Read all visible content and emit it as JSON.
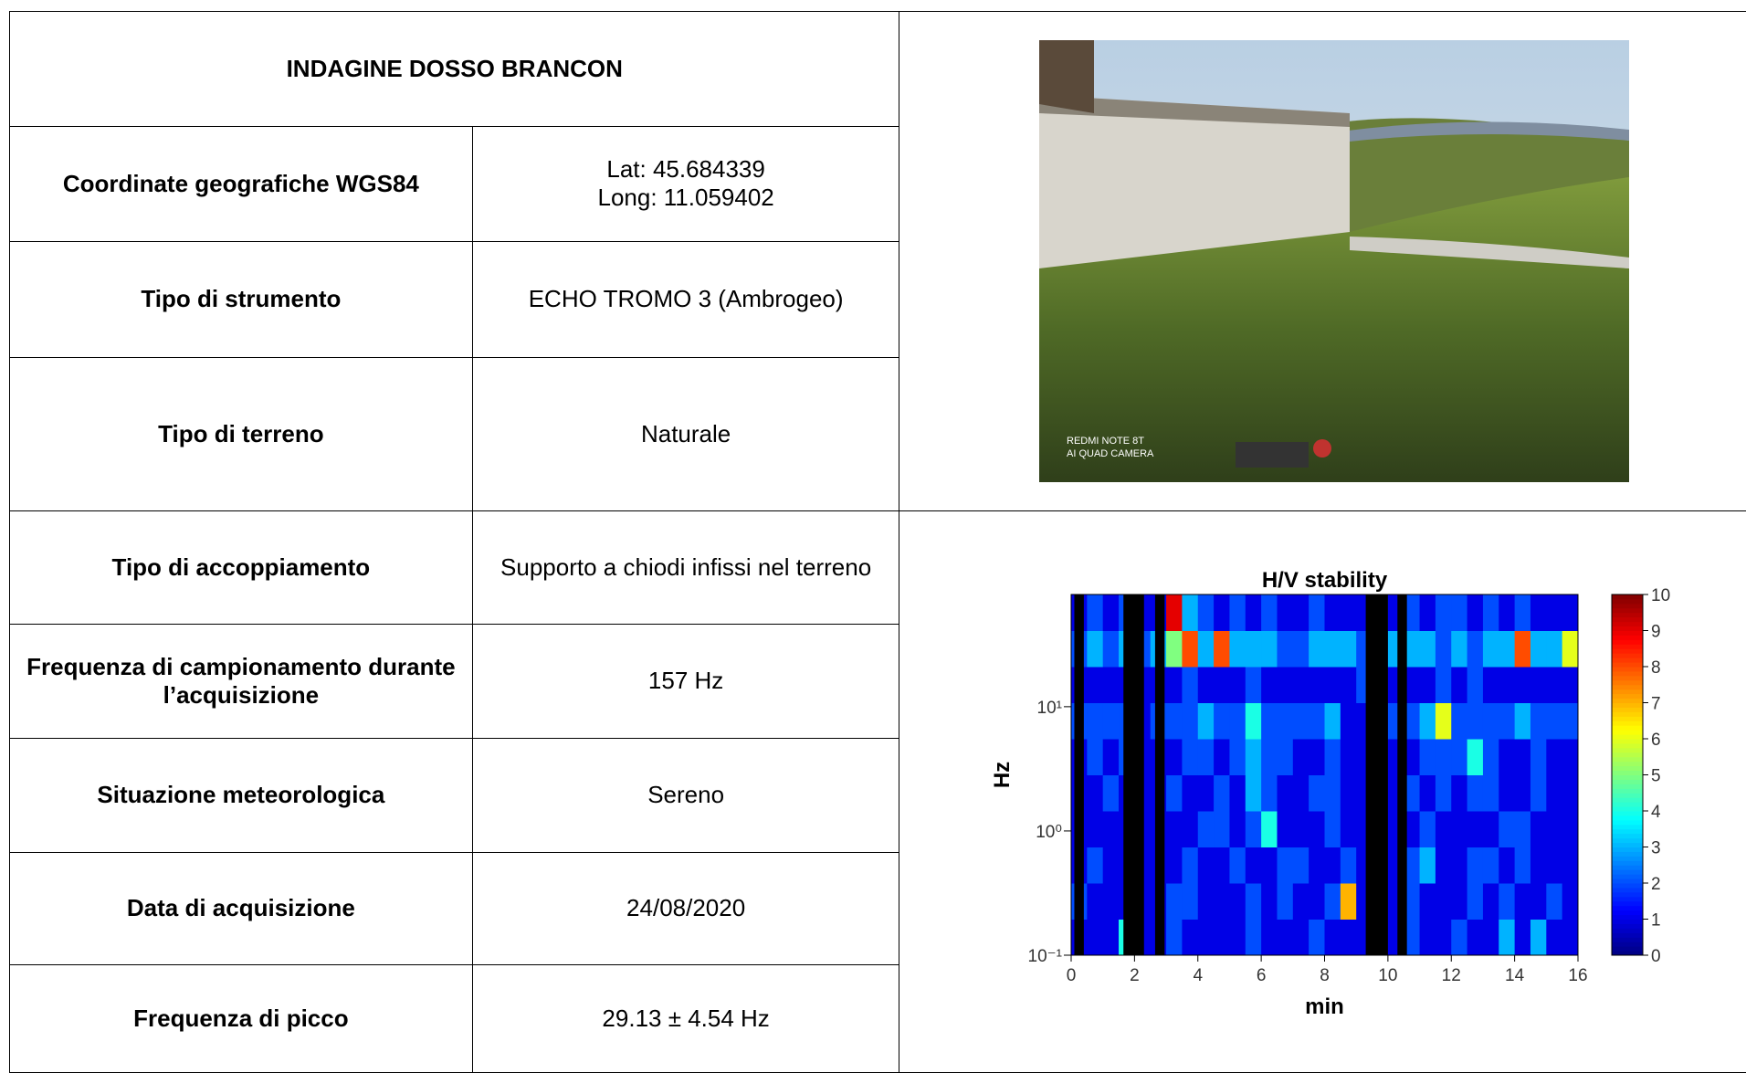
{
  "table": {
    "title": "INDAGINE DOSSO BRANCON",
    "rows": [
      [
        "Coordinate geografiche WGS84",
        "Lat: 45.684339\nLong: 11.059402"
      ],
      [
        "Tipo di strumento",
        "ECHO TROMO 3 (Ambrogeo)"
      ],
      [
        "Tipo di terreno",
        "Naturale"
      ],
      [
        "Tipo di accoppiamento",
        "Supporto a chiodi infissi nel terreno"
      ],
      [
        "Frequenza di campionamento durante l’acquisizione",
        "157 Hz"
      ],
      [
        "Situazione meteorologica",
        "Sereno"
      ],
      [
        "Data di acquisizione",
        "24/08/2020"
      ],
      [
        "Frequenza di picco",
        "29.13 ± 4.54 Hz"
      ]
    ]
  },
  "photo": {
    "watermark": [
      "REDMI NOTE 8T",
      "AI QUAD CAMERA"
    ]
  },
  "chart_data": {
    "type": "heatmap",
    "title": "H/V stability",
    "x_label": "min",
    "y_label": "Hz",
    "xlim": [
      0,
      16
    ],
    "xticks": [
      0,
      2,
      4,
      6,
      8,
      10,
      12,
      14,
      16
    ],
    "ylim": [
      0.1,
      80
    ],
    "y_scale": "log",
    "yticks": [
      {
        "value": 0.1,
        "label": "10⁻¹"
      },
      {
        "value": 1,
        "label": "10⁰"
      },
      {
        "value": 10,
        "label": "10¹"
      }
    ],
    "colormap": "jet",
    "zlim": [
      0,
      10
    ],
    "zticks": [
      0,
      1,
      2,
      3,
      4,
      5,
      6,
      7,
      8,
      9,
      10
    ],
    "excluded_color": "#000000",
    "excluded_windows": [
      [
        0.1,
        0.4
      ],
      [
        1.65,
        2.3
      ],
      [
        2.65,
        2.95
      ],
      [
        9.3,
        10.0
      ],
      [
        10.3,
        10.6
      ]
    ],
    "z": [
      [
        1,
        1,
        1,
        4,
        1,
        1,
        2,
        1,
        1,
        1,
        1,
        2,
        1,
        1,
        1,
        2,
        1,
        1,
        1,
        1,
        1,
        2,
        1,
        1,
        2,
        1,
        1,
        3,
        1,
        3,
        1,
        1
      ],
      [
        2,
        1,
        1,
        1,
        1,
        1,
        2,
        2,
        1,
        1,
        1,
        2,
        1,
        2,
        1,
        1,
        2,
        7,
        1,
        1,
        1,
        2,
        1,
        1,
        1,
        2,
        1,
        2,
        1,
        1,
        2,
        1
      ],
      [
        1,
        2,
        1,
        1,
        1,
        1,
        1,
        2,
        1,
        1,
        2,
        1,
        1,
        2,
        2,
        1,
        1,
        2,
        1,
        1,
        1,
        2,
        3,
        1,
        1,
        2,
        2,
        1,
        2,
        1,
        1,
        1
      ],
      [
        1,
        1,
        1,
        1,
        1,
        1,
        1,
        1,
        2,
        2,
        1,
        2,
        4,
        1,
        1,
        1,
        2,
        1,
        1,
        1,
        1,
        1,
        2,
        1,
        1,
        1,
        1,
        2,
        2,
        1,
        1,
        1
      ],
      [
        1,
        1,
        2,
        1,
        1,
        1,
        2,
        1,
        1,
        2,
        1,
        3,
        2,
        1,
        1,
        2,
        2,
        1,
        1,
        1,
        1,
        2,
        1,
        2,
        1,
        2,
        2,
        1,
        1,
        2,
        1,
        1
      ],
      [
        1,
        2,
        1,
        2,
        1,
        1,
        1,
        2,
        2,
        1,
        2,
        3,
        2,
        2,
        1,
        1,
        2,
        1,
        1,
        1,
        1,
        1,
        2,
        2,
        2,
        4,
        2,
        1,
        1,
        2,
        1,
        1
      ],
      [
        2,
        2,
        2,
        2,
        1,
        2,
        2,
        2,
        3,
        2,
        2,
        4,
        2,
        2,
        2,
        2,
        3,
        1,
        1,
        1,
        2,
        2,
        3,
        6,
        2,
        2,
        2,
        2,
        3,
        2,
        2,
        2
      ],
      [
        1,
        1,
        1,
        1,
        1,
        1,
        1,
        2,
        1,
        1,
        1,
        2,
        1,
        1,
        1,
        1,
        1,
        1,
        2,
        1,
        1,
        1,
        1,
        2,
        1,
        2,
        1,
        1,
        1,
        1,
        1,
        1
      ],
      [
        2,
        3,
        2,
        3,
        2,
        3,
        5,
        8,
        3,
        8,
        3,
        3,
        3,
        2,
        2,
        3,
        3,
        3,
        2,
        2,
        3,
        3,
        3,
        2,
        3,
        2,
        3,
        3,
        8,
        3,
        3,
        6
      ],
      [
        1,
        2,
        1,
        2,
        1,
        1,
        9,
        3,
        2,
        1,
        2,
        1,
        2,
        1,
        1,
        2,
        1,
        1,
        1,
        2,
        1,
        2,
        1,
        2,
        2,
        1,
        2,
        1,
        2,
        1,
        1,
        1
      ]
    ]
  }
}
